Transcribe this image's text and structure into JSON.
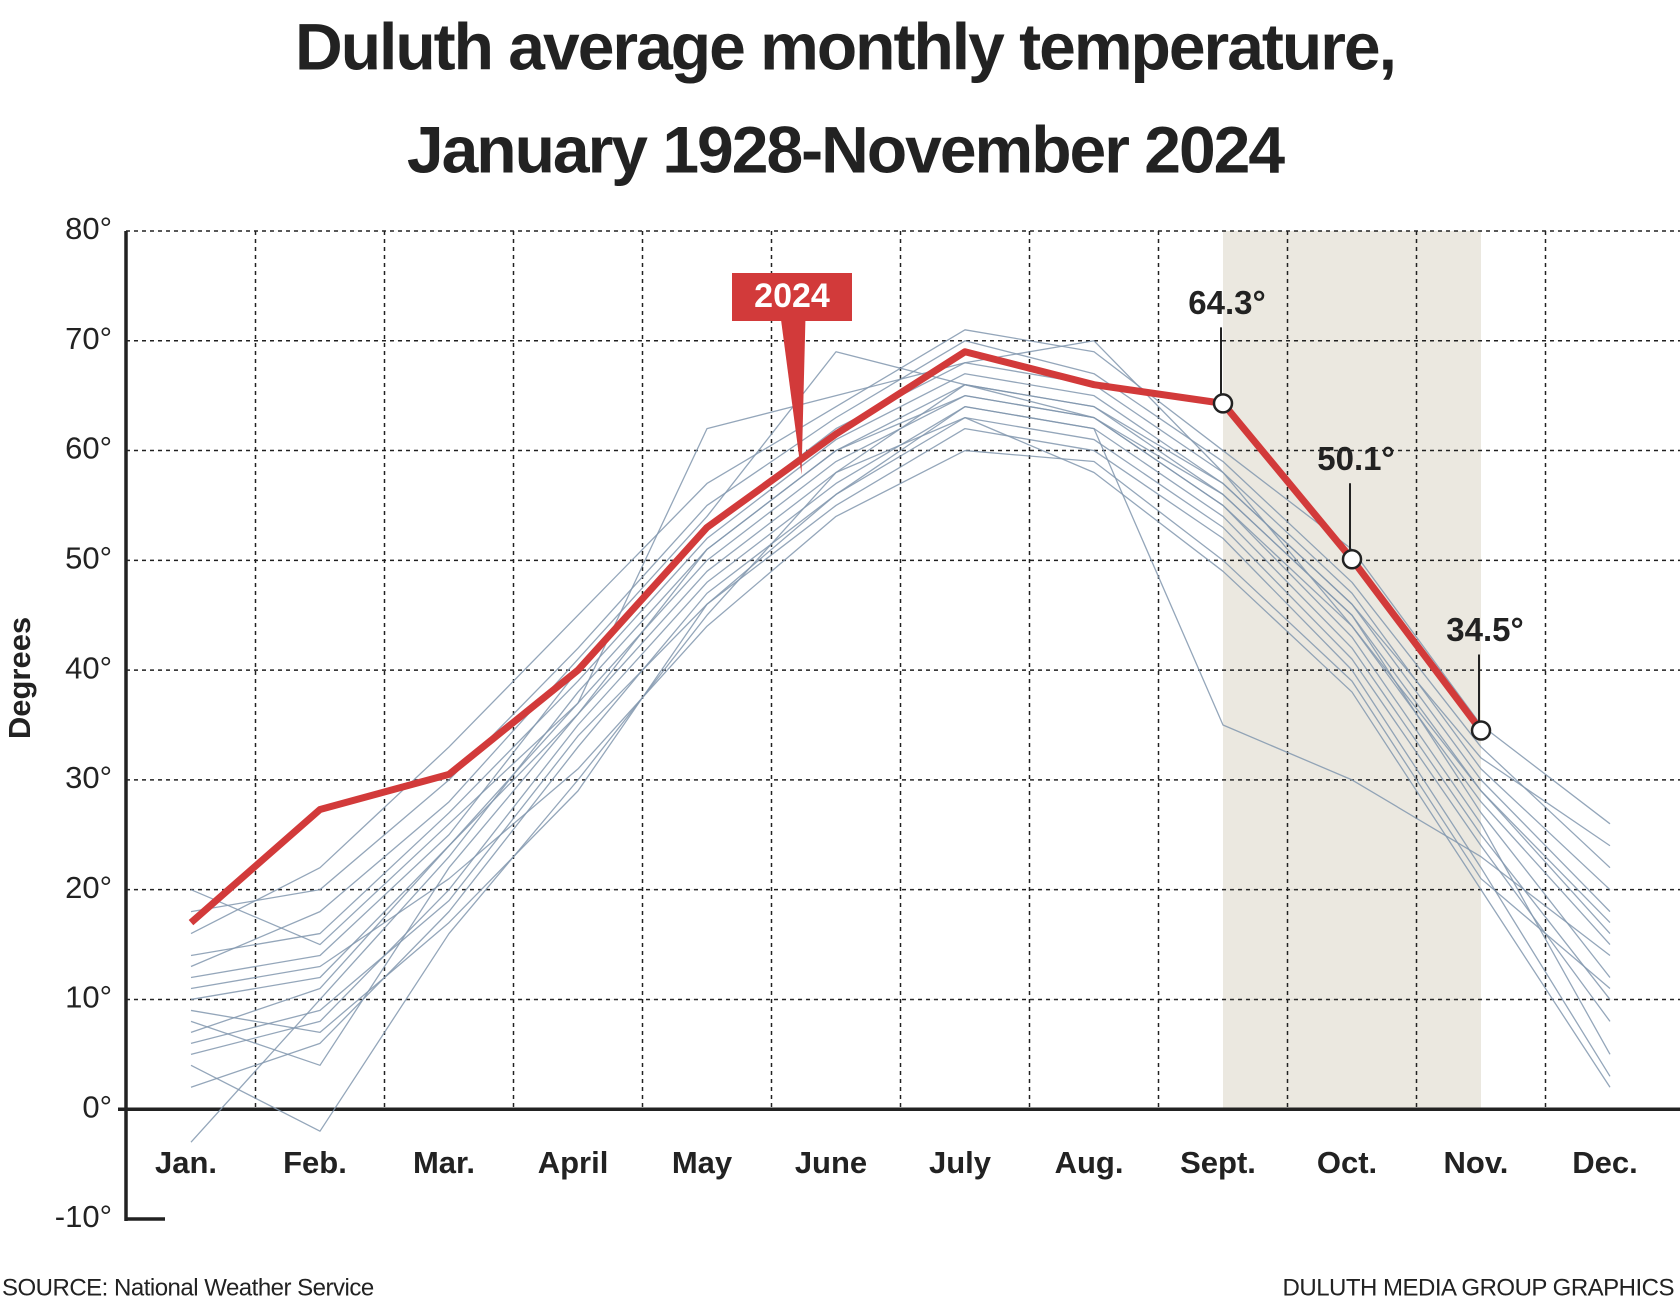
{
  "chart_data": {
    "type": "line",
    "title": [
      "Duluth average monthly temperature,",
      "January 1928-November 2024"
    ],
    "y_label": "Degrees",
    "source": "SOURCE: National Weather Service",
    "credit": "DULUTH MEDIA GROUP GRAPHICS",
    "categories": [
      "Jan.",
      "Feb.",
      "Mar.",
      "April",
      "May",
      "June",
      "July",
      "Aug.",
      "Sept.",
      "Oct.",
      "Nov.",
      "Dec."
    ],
    "ylim": [
      -10,
      80
    ],
    "yticks": [
      {
        "value": -10,
        "label": "-10°"
      },
      {
        "value": 0,
        "label": "0°"
      },
      {
        "value": 10,
        "label": "10°"
      },
      {
        "value": 20,
        "label": "20°"
      },
      {
        "value": 30,
        "label": "30°"
      },
      {
        "value": 40,
        "label": "40°"
      },
      {
        "value": 50,
        "label": "50°"
      },
      {
        "value": 60,
        "label": "60°"
      },
      {
        "value": 70,
        "label": "70°"
      },
      {
        "value": 80,
        "label": "80°"
      }
    ],
    "grid": true,
    "shaded_range": [
      "Sept.",
      "Nov."
    ],
    "series": [
      {
        "color": "#8196ae",
        "values": [
          10,
          12,
          24,
          37,
          50,
          59,
          65,
          63,
          55,
          44,
          28,
          15
        ]
      },
      {
        "color": "#8196ae",
        "values": [
          5,
          8,
          20,
          35,
          48,
          57,
          64,
          62,
          54,
          42,
          25,
          10
        ]
      },
      {
        "color": "#8196ae",
        "values": [
          14,
          16,
          27,
          39,
          52,
          61,
          67,
          65,
          57,
          46,
          30,
          18
        ]
      },
      {
        "color": "#8196ae",
        "values": [
          2,
          6,
          18,
          33,
          47,
          56,
          63,
          61,
          53,
          41,
          24,
          8
        ]
      },
      {
        "color": "#8196ae",
        "values": [
          18,
          20,
          30,
          42,
          55,
          63,
          70,
          67,
          59,
          48,
          33,
          22
        ]
      },
      {
        "color": "#8196ae",
        "values": [
          8,
          4,
          22,
          36,
          49,
          58,
          66,
          64,
          56,
          45,
          27,
          12
        ]
      },
      {
        "color": "#8196ae",
        "values": [
          -3,
          10,
          23,
          38,
          51,
          60,
          66,
          63,
          55,
          43,
          26,
          5
        ]
      },
      {
        "color": "#8196ae",
        "values": [
          12,
          14,
          25,
          40,
          53,
          62,
          68,
          66,
          58,
          47,
          31,
          20
        ]
      },
      {
        "color": "#8196ae",
        "values": [
          6,
          9,
          19,
          34,
          46,
          55,
          62,
          60,
          52,
          40,
          22,
          3
        ]
      },
      {
        "color": "#8196ae",
        "values": [
          16,
          22,
          33,
          45,
          57,
          64,
          71,
          69,
          60,
          51,
          35,
          26
        ]
      },
      {
        "color": "#8196ae",
        "values": [
          11,
          13,
          21,
          31,
          44,
          54,
          60,
          59,
          50,
          39,
          21,
          11
        ]
      },
      {
        "color": "#8196ae",
        "values": [
          9,
          7,
          17,
          29,
          46,
          56,
          64,
          62,
          35,
          30,
          23,
          14
        ]
      },
      {
        "color": "#8196ae",
        "values": [
          20,
          15,
          26,
          37,
          62,
          65,
          68,
          70,
          58,
          44,
          29,
          17
        ]
      },
      {
        "color": "#8196ae",
        "values": [
          4,
          -2,
          16,
          30,
          45,
          58,
          63,
          58,
          49,
          38,
          20,
          2
        ]
      },
      {
        "color": "#8196ae",
        "values": [
          13,
          18,
          28,
          41,
          54,
          69,
          66,
          64,
          57,
          46,
          32,
          24
        ]
      },
      {
        "color": "#8196ae",
        "values": [
          7,
          11,
          24,
          36,
          51,
          60,
          65,
          63,
          56,
          45,
          29,
          16
        ]
      },
      {
        "name": "2024",
        "color": "#d23a3a",
        "values": [
          17,
          27.3,
          30.5,
          40,
          53,
          61.5,
          69,
          66,
          64.3,
          50.1,
          34.5,
          null
        ],
        "value_labels": [
          null,
          null,
          null,
          null,
          null,
          null,
          null,
          null,
          "64.3°",
          "50.1°",
          "34.5°",
          null
        ]
      }
    ]
  }
}
